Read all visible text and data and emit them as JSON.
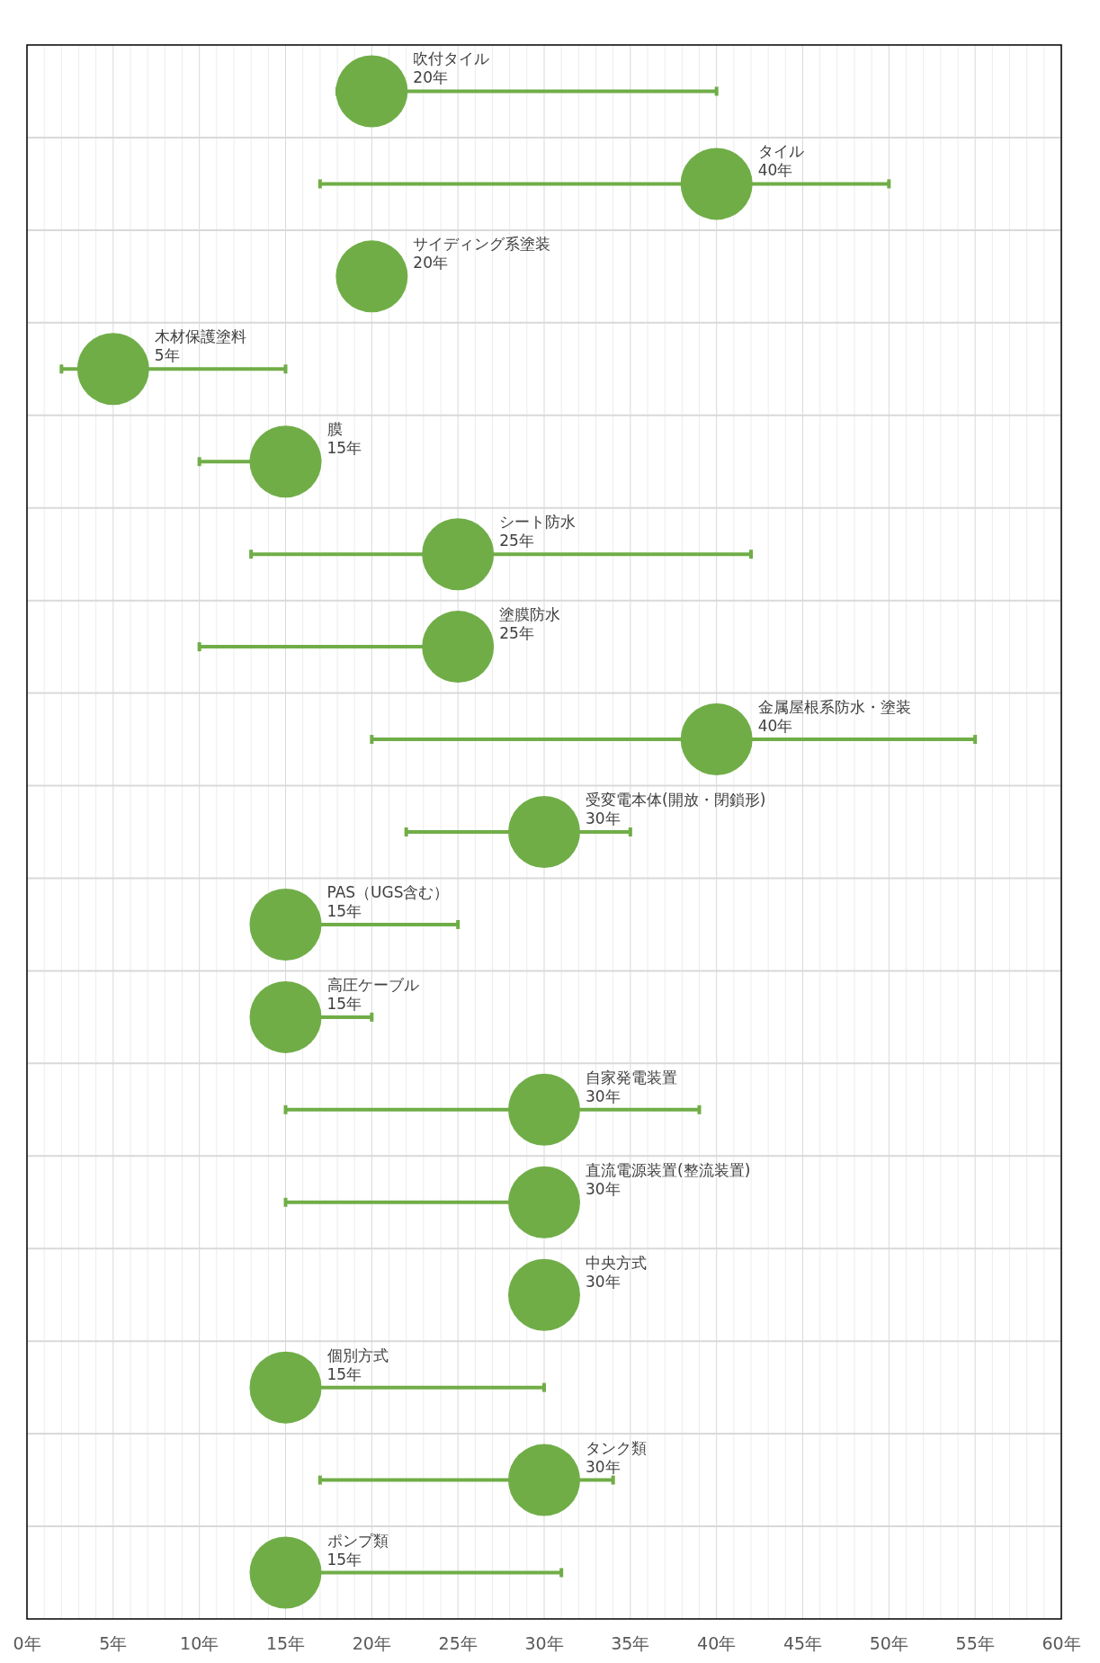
{
  "chart_data": {
    "type": "scatter",
    "orientation": "horizontal",
    "marker": "circle",
    "grid": true,
    "tick_labels": "x",
    "categories": [
      "吹付タイル",
      "タイル",
      "サイディング系塗装",
      "木材保護塗料",
      "膜",
      "シート防水",
      "塗膜防水",
      "金属屋根系防水・塗装",
      "受変電本体(開放・閉鎖形)",
      "PAS（UGS含む）",
      "高圧ケーブル",
      "自家発電装置",
      "直流電源装置(整流装置)",
      "中央方式",
      "個別方式",
      "タンク類",
      "ポンプ類"
    ],
    "series": [
      {
        "color": "#70ad47",
        "values": [
          20,
          40,
          20,
          5,
          15,
          25,
          25,
          40,
          30,
          15,
          15,
          30,
          30,
          30,
          15,
          30,
          15
        ],
        "errors": [
          [
            18,
            40
          ],
          [
            17,
            50
          ],
          null,
          [
            2,
            15
          ],
          [
            10,
            15
          ],
          [
            13,
            42
          ],
          [
            10,
            25
          ],
          [
            20,
            55
          ],
          [
            22,
            35
          ],
          [
            15,
            25
          ],
          [
            15,
            20
          ],
          [
            15,
            39
          ],
          [
            15,
            30
          ],
          null,
          [
            15,
            30
          ],
          [
            17,
            34
          ],
          [
            15,
            31
          ]
        ],
        "value_labels": [
          "20年",
          "40年",
          "20年",
          "5年",
          "15年",
          "25年",
          "25年",
          "40年",
          "30年",
          "15年",
          "15年",
          "30年",
          "30年",
          "30年",
          "15年",
          "30年",
          "15年"
        ]
      }
    ],
    "xlim": [
      0,
      60
    ],
    "xticks": [
      {
        "value": 0,
        "label": "0年"
      },
      {
        "value": 5,
        "label": "5年"
      },
      {
        "value": 10,
        "label": "10年"
      },
      {
        "value": 15,
        "label": "15年"
      },
      {
        "value": 20,
        "label": "20年"
      },
      {
        "value": 25,
        "label": "25年"
      },
      {
        "value": 30,
        "label": "30年"
      },
      {
        "value": 35,
        "label": "35年"
      },
      {
        "value": 40,
        "label": "40年"
      },
      {
        "value": 45,
        "label": "45年"
      },
      {
        "value": 50,
        "label": "50年"
      },
      {
        "value": 55,
        "label": "55年"
      },
      {
        "value": 60,
        "label": "60年"
      }
    ]
  }
}
